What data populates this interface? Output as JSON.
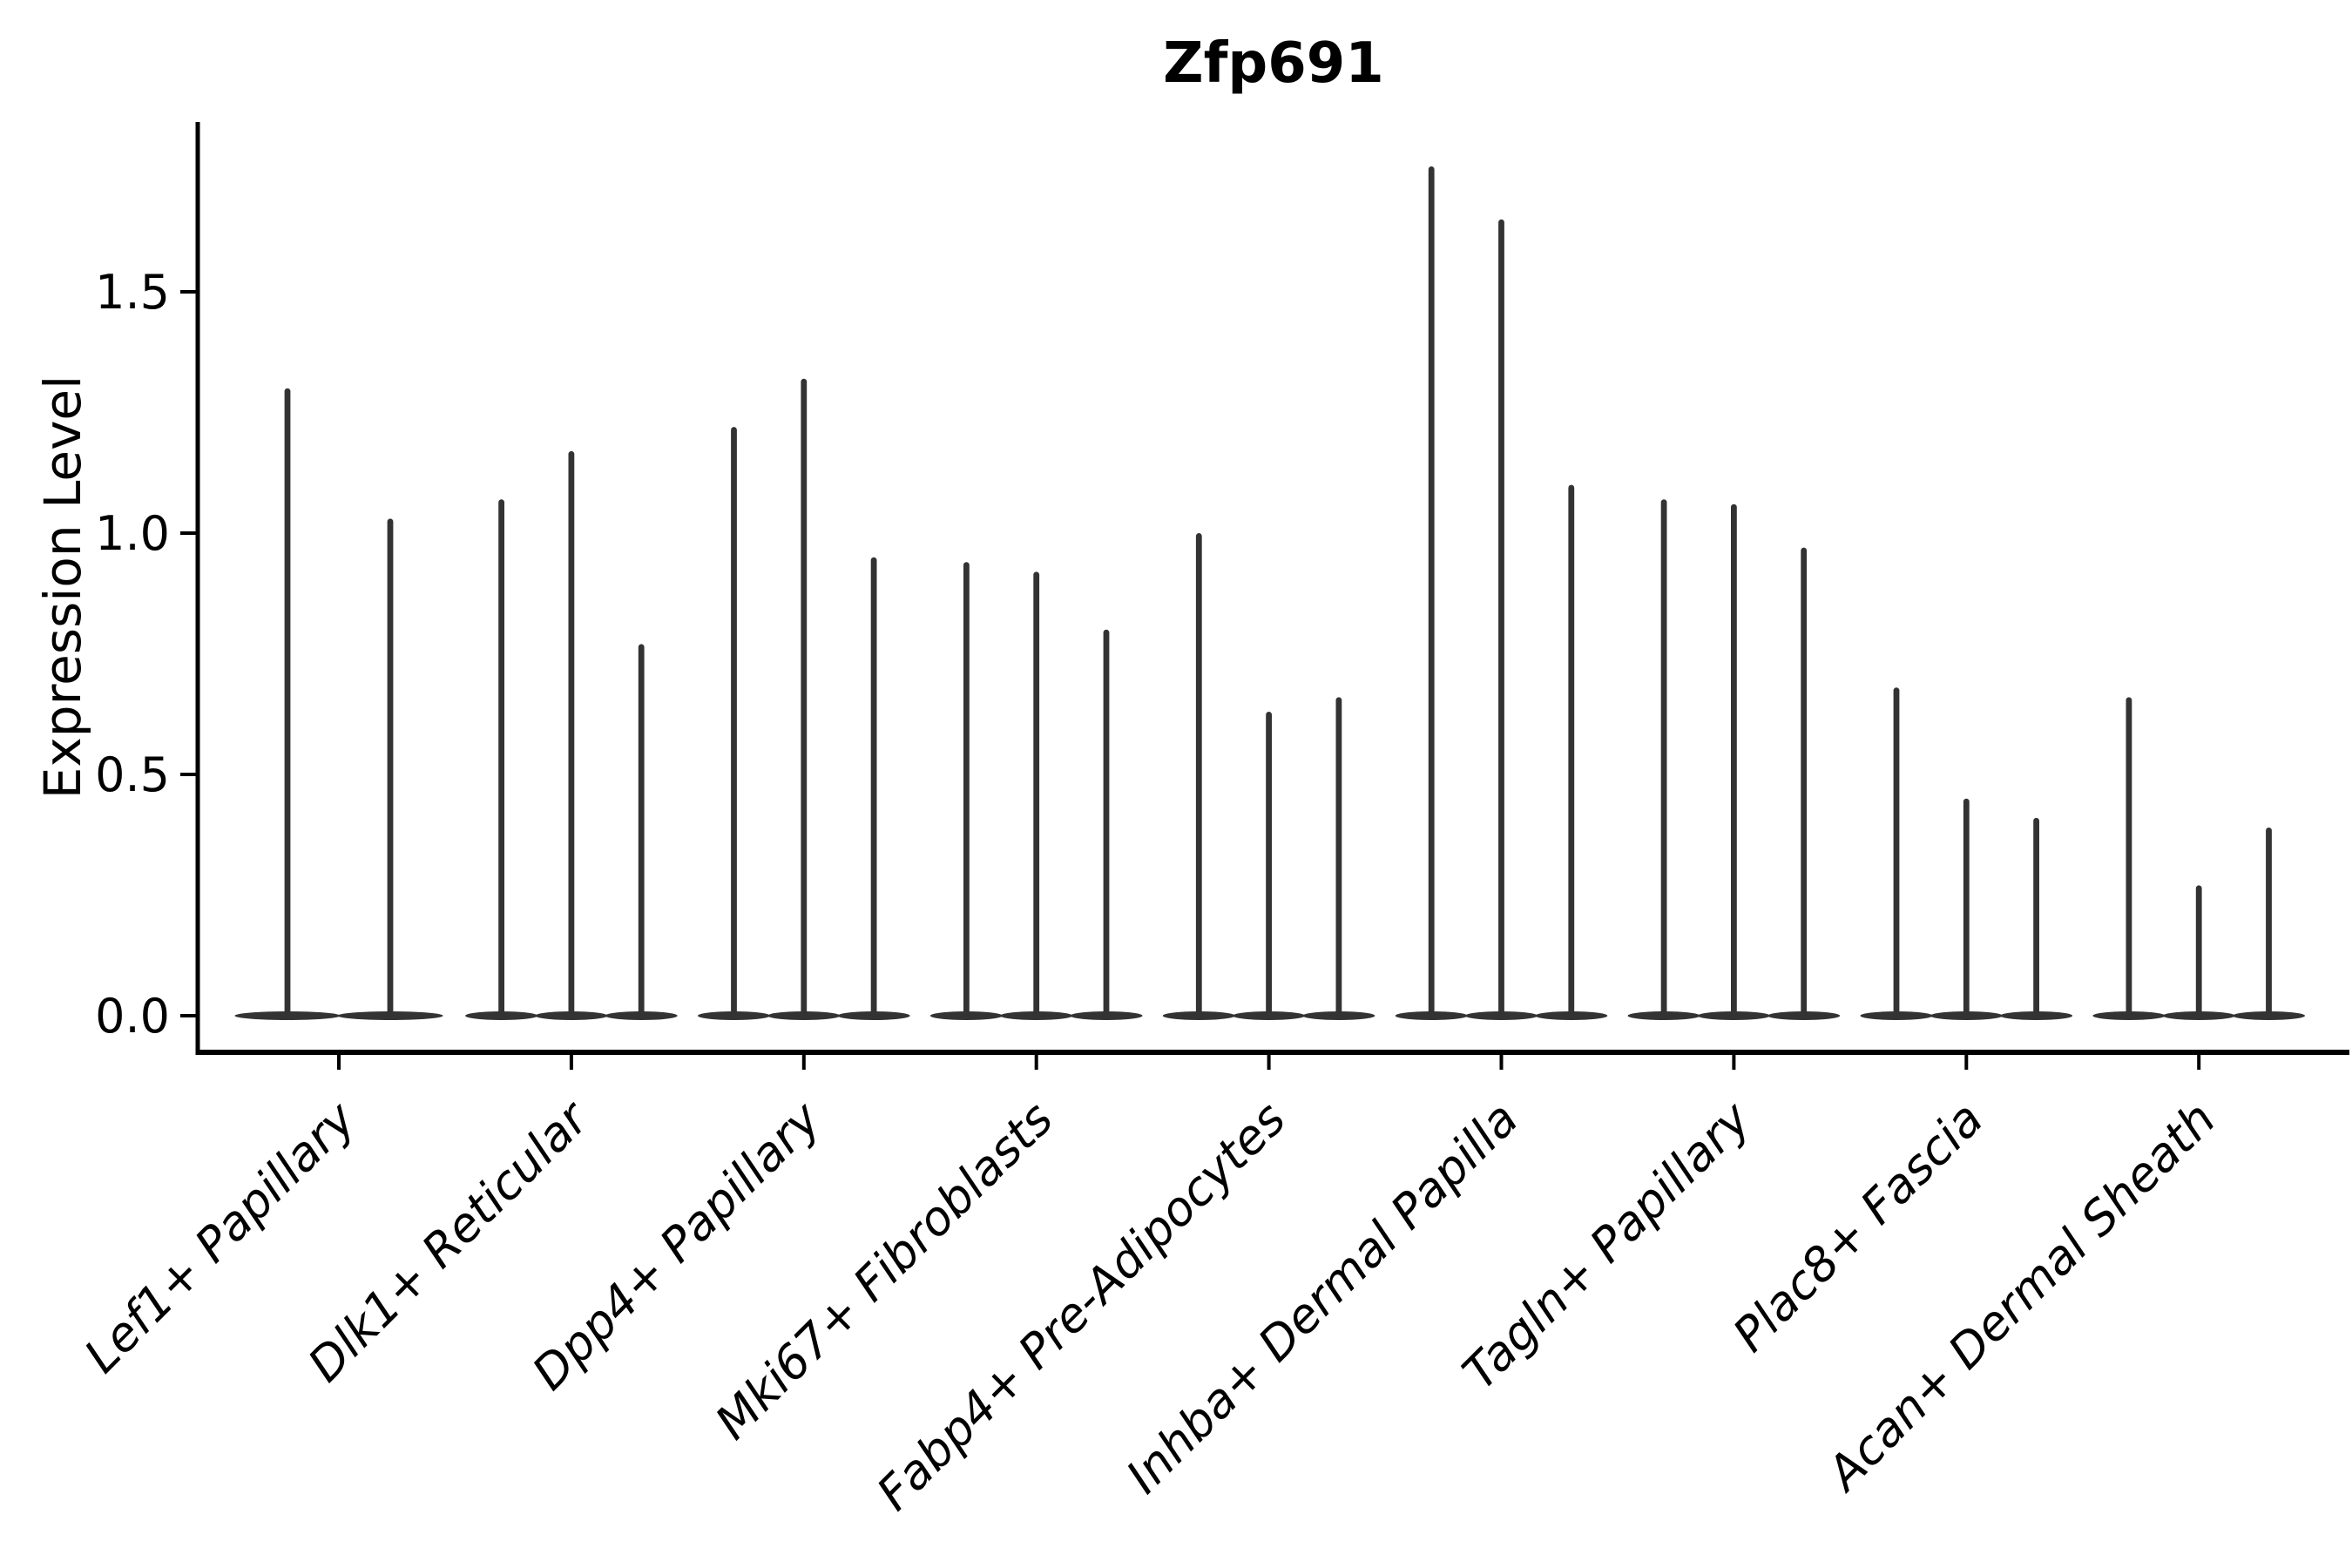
{
  "figure": {
    "title": "Zfp691",
    "y_axis_label": "Expression Level"
  },
  "chart_data": {
    "type": "violin",
    "title": "Zfp691",
    "xlabel": "",
    "ylabel": "Expression Level",
    "ylim": [
      -0.08,
      1.85
    ],
    "yticks": [
      {
        "label": "0.0",
        "value": 0.0
      },
      {
        "label": "0.5",
        "value": 0.5
      },
      {
        "label": "1.0",
        "value": 1.0
      },
      {
        "label": "1.5",
        "value": 1.5
      }
    ],
    "grid": false,
    "legend": "none",
    "categories": [
      "Lef1+ Papillary",
      "Dlk1+ Reticular",
      "Dpp4+ Papillary",
      "Mki67+ Fibroblasts",
      "Fabp4+ Pre-Adipocytes",
      "Inhba+ Dermal Papilla",
      "Tagln+ Papillary",
      "Plac8+ Fascia",
      "Acan+ Dermal Sheath"
    ],
    "groups": [
      {
        "label": "Lef1+ Papillary",
        "violin_peaks": [
          1.3,
          1.03
        ]
      },
      {
        "label": "Dlk1+ Reticular",
        "violin_peaks": [
          1.07,
          1.17,
          0.77
        ]
      },
      {
        "label": "Dpp4+ Papillary",
        "violin_peaks": [
          1.22,
          1.32,
          0.95
        ]
      },
      {
        "label": "Mki67+ Fibroblasts",
        "violin_peaks": [
          0.94,
          0.92,
          0.8
        ]
      },
      {
        "label": "Fabp4+ Pre-Adipocytes",
        "violin_peaks": [
          1.0,
          0.63,
          0.66
        ]
      },
      {
        "label": "Inhba+ Dermal Papilla",
        "violin_peaks": [
          1.76,
          1.65,
          1.1
        ]
      },
      {
        "label": "Tagln+ Papillary",
        "violin_peaks": [
          1.07,
          1.06,
          0.97
        ]
      },
      {
        "label": "Plac8+ Fascia",
        "violin_peaks": [
          0.68,
          0.45,
          0.41
        ]
      },
      {
        "label": "Acan+ Dermal Sheath",
        "violin_peaks": [
          0.66,
          0.27,
          0.39
        ]
      }
    ],
    "colors": {
      "violin_fill": "#333333",
      "violin_edge": "#1f1f1f",
      "axis": "#000000",
      "text": "#000000",
      "background": "#ffffff"
    }
  }
}
